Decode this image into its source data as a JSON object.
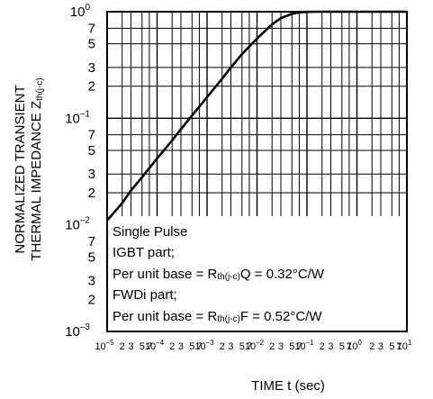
{
  "chart_data": {
    "type": "line",
    "x_scale": "log",
    "y_scale": "log",
    "xlim": [
      1e-05,
      10
    ],
    "ylim": [
      0.001,
      1
    ],
    "grid": true,
    "xlabel": {
      "main": "TIME  t",
      "unit": " (sec)"
    },
    "ylabel": {
      "line1": "NORMALIZED TRANSIENT",
      "line2": "THERMAL IMPEDANCE  Z",
      "line2_sub": "th(j-c)"
    },
    "y_ticks": [
      {
        "value": 1,
        "base": "10",
        "exp": "0"
      },
      {
        "value": 0.7,
        "label": "7"
      },
      {
        "value": 0.5,
        "label": "5"
      },
      {
        "value": 0.3,
        "label": "3"
      },
      {
        "value": 0.2,
        "label": "2"
      },
      {
        "value": 0.1,
        "base": "10",
        "exp": "–1"
      },
      {
        "value": 0.07,
        "label": "7"
      },
      {
        "value": 0.05,
        "label": "5"
      },
      {
        "value": 0.03,
        "label": "3"
      },
      {
        "value": 0.02,
        "label": "2"
      },
      {
        "value": 0.01,
        "base": "10",
        "exp": "–2"
      },
      {
        "value": 0.007,
        "label": "7"
      },
      {
        "value": 0.005,
        "label": "5"
      },
      {
        "value": 0.003,
        "label": "3"
      },
      {
        "value": 0.002,
        "label": "2"
      },
      {
        "value": 0.001,
        "base": "10",
        "exp": "–3"
      }
    ],
    "x_ticks": [
      {
        "value": 1e-05,
        "base": "10",
        "exp": "–5"
      },
      {
        "value": 2e-05,
        "label": "2"
      },
      {
        "value": 3e-05,
        "label": "3"
      },
      {
        "value": 5e-05,
        "label": "5"
      },
      {
        "value": 7e-05,
        "label": "7"
      },
      {
        "value": 0.0001,
        "base": "10",
        "exp": "–4"
      },
      {
        "value": 0.0002,
        "label": "2"
      },
      {
        "value": 0.0003,
        "label": "3"
      },
      {
        "value": 0.0005,
        "label": "5"
      },
      {
        "value": 0.0007,
        "label": "7"
      },
      {
        "value": 0.001,
        "base": "10",
        "exp": "–3"
      },
      {
        "value": 0.002,
        "label": "2"
      },
      {
        "value": 0.003,
        "label": "3"
      },
      {
        "value": 0.005,
        "label": "5"
      },
      {
        "value": 0.007,
        "label": "7"
      },
      {
        "value": 0.01,
        "base": "10",
        "exp": "–2"
      },
      {
        "value": 0.02,
        "label": "2"
      },
      {
        "value": 0.03,
        "label": "3"
      },
      {
        "value": 0.05,
        "label": "5"
      },
      {
        "value": 0.07,
        "label": "7"
      },
      {
        "value": 0.1,
        "base": "10",
        "exp": "–1"
      },
      {
        "value": 0.2,
        "label": "2"
      },
      {
        "value": 0.3,
        "label": "3"
      },
      {
        "value": 0.5,
        "label": "5"
      },
      {
        "value": 0.7,
        "label": "7"
      },
      {
        "value": 1,
        "base": "10",
        "exp": "0"
      },
      {
        "value": 2,
        "label": "2"
      },
      {
        "value": 3,
        "label": "3"
      },
      {
        "value": 5,
        "label": "5"
      },
      {
        "value": 7,
        "label": "7"
      },
      {
        "value": 10,
        "base": "10",
        "exp": "1"
      }
    ],
    "series": [
      {
        "x": [
          1e-05,
          2e-05,
          3e-05,
          5e-05,
          0.0001,
          0.0002,
          0.0003,
          0.0005,
          0.001,
          0.002,
          0.003,
          0.005,
          0.01,
          0.02,
          0.03,
          0.05,
          0.07,
          0.1,
          0.15,
          0.2,
          0.3,
          0.5,
          1,
          2,
          5,
          10
        ],
        "y": [
          0.011,
          0.016,
          0.021,
          0.028,
          0.042,
          0.062,
          0.079,
          0.106,
          0.158,
          0.235,
          0.3,
          0.4,
          0.56,
          0.76,
          0.87,
          0.955,
          0.985,
          0.997,
          1.0,
          1.0,
          1.0,
          1.0,
          1.0,
          1.0,
          1.0,
          1.0
        ]
      }
    ],
    "annotation": {
      "line1": "Single Pulse",
      "line2": "IGBT part;",
      "line3_pre": "Per unit base = R",
      "line3_sub": "th(j-c)",
      "line3_post": "Q = 0.32°C/W",
      "line4": "FWDi part;",
      "line5_pre": "Per unit base = R",
      "line5_sub": "th(j-c)",
      "line5_post": "F = 0.52°C/W"
    }
  }
}
